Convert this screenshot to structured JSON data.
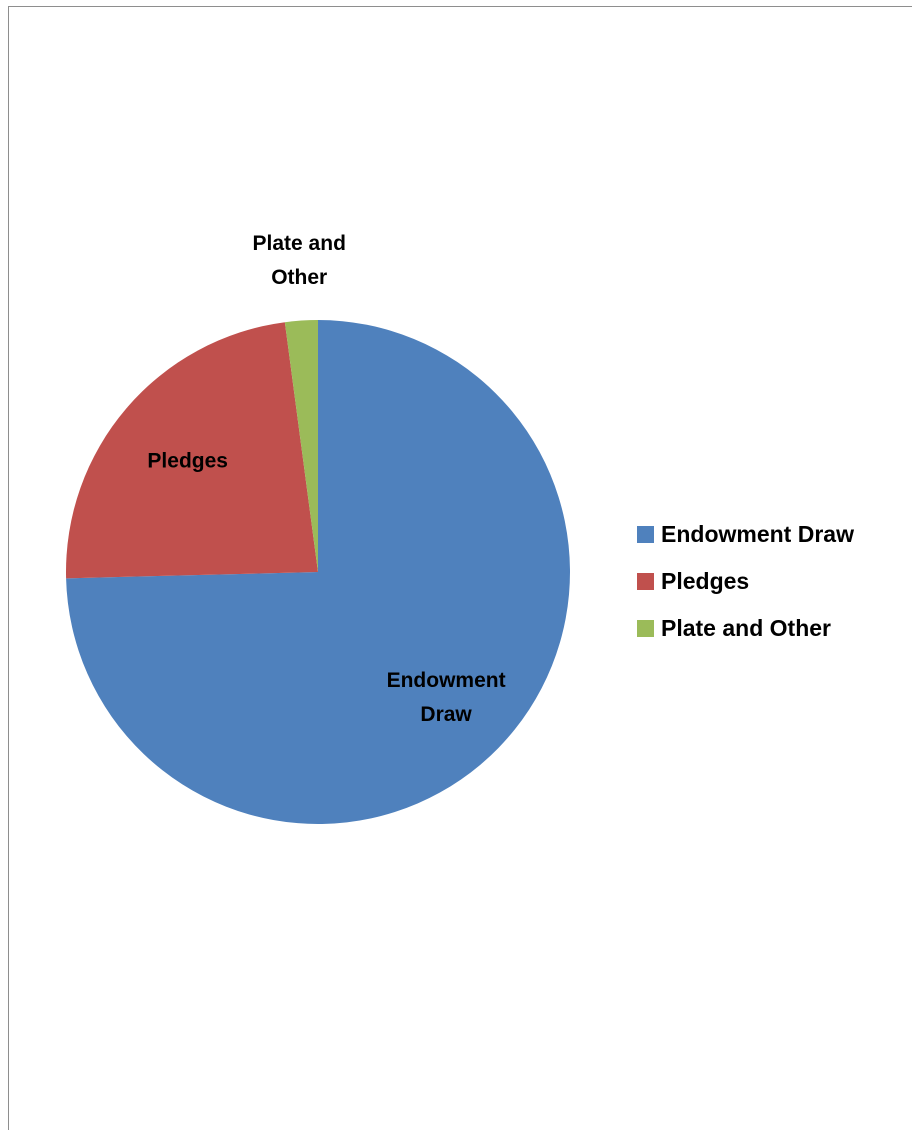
{
  "chart_data": {
    "type": "pie",
    "title": "",
    "categories": [
      "Endowment Draw",
      "Pledges",
      "Plate and Other"
    ],
    "values": [
      74.6,
      23.3,
      2.1
    ],
    "value_unit": "percent (estimated from slice angles)",
    "colors": [
      "#4f81bd",
      "#c0504d",
      "#9bbb59"
    ],
    "data_labels": [
      [
        "Endowment",
        "Draw"
      ],
      [
        "Pledges"
      ],
      [
        "Plate and",
        "Other"
      ]
    ],
    "legend": {
      "placement": "right",
      "entries": [
        "Endowment Draw",
        "Pledges",
        "Plate and Other"
      ]
    },
    "start_angle": "12 o'clock",
    "direction": "clockwise"
  }
}
